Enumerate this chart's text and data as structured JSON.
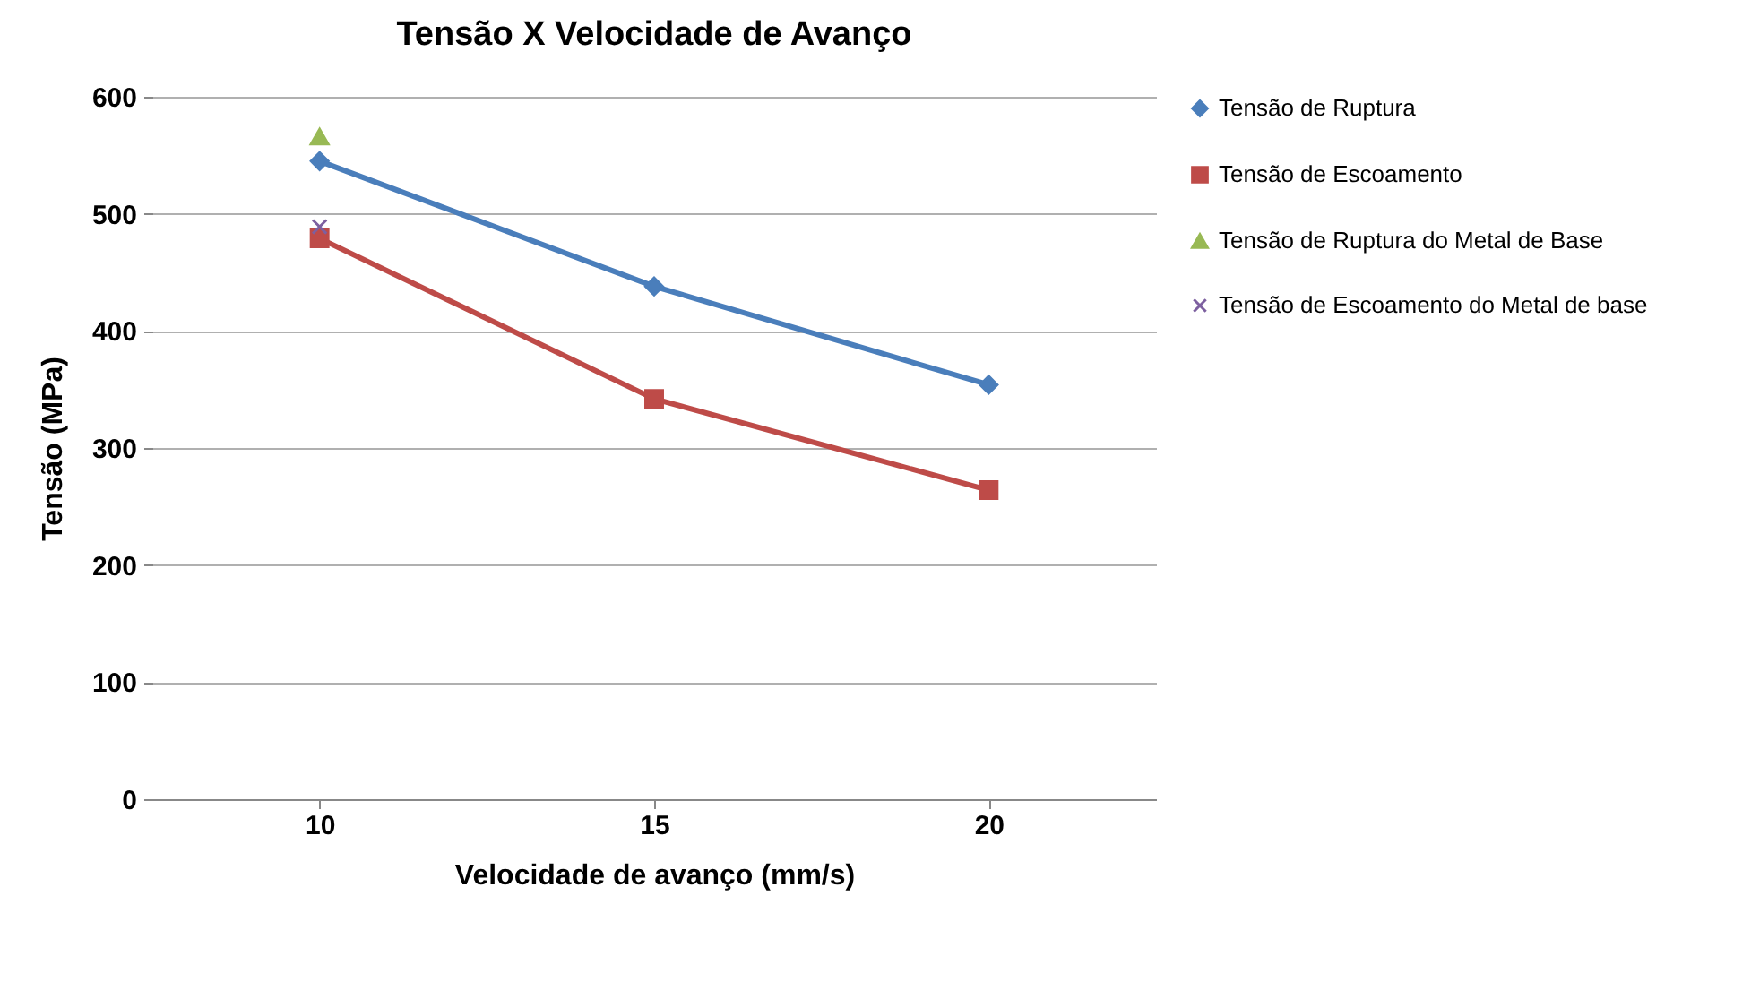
{
  "chart_data": {
    "type": "line",
    "title": "Tensão  X Velocidade de Avanço",
    "xlabel": "Velocidade de avanço (mm/s)",
    "ylabel": "Tensão (MPa)",
    "categories": [
      "10",
      "15",
      "20"
    ],
    "series": [
      {
        "name": "Tensão de Ruptura",
        "color": "#4a7ebb",
        "marker": "diamond",
        "values": [
          545,
          438,
          354
        ]
      },
      {
        "name": "Tensão de Escoamento",
        "color": "#be4b48",
        "marker": "square",
        "values": [
          479,
          342,
          264
        ]
      },
      {
        "name": "Tensão de Ruptura do Metal de Base",
        "color": "#98b954",
        "marker": "triangle",
        "values": [
          566,
          null,
          null
        ]
      },
      {
        "name": "Tensão de Escoamento do Metal de base",
        "color": "#7d60a0",
        "marker": "cross",
        "values": [
          489,
          null,
          null
        ]
      }
    ],
    "ylim": [
      0,
      600
    ],
    "yticks": [
      0,
      100,
      200,
      300,
      400,
      500,
      600
    ],
    "grid": "y",
    "legend": "right"
  }
}
